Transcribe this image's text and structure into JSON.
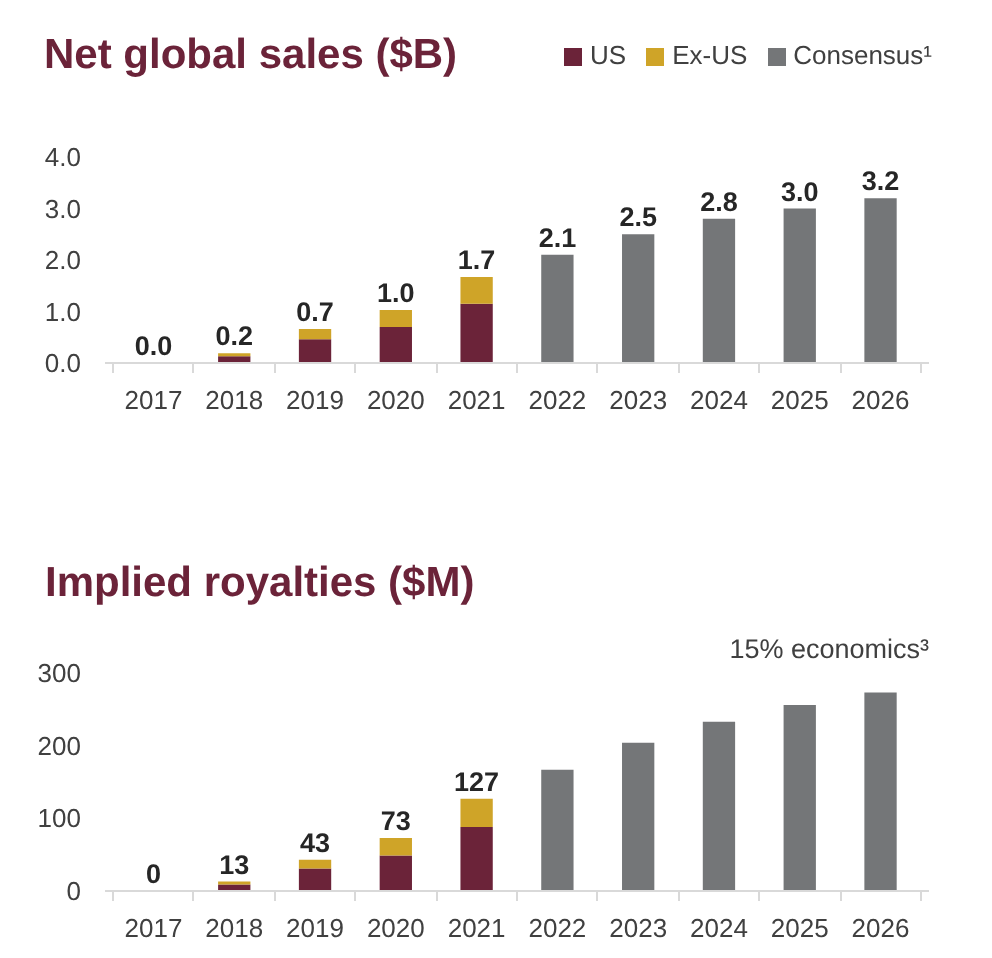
{
  "chart_data": [
    {
      "type": "bar",
      "title": "Net global sales ($B)",
      "categories": [
        "2017",
        "2018",
        "2019",
        "2020",
        "2021",
        "2022",
        "2023",
        "2024",
        "2025",
        "2026"
      ],
      "stacked": true,
      "series": [
        {
          "name": "US",
          "color": "#6b2339",
          "values": [
            0,
            0.13,
            0.46,
            0.7,
            1.15,
            null,
            null,
            null,
            null,
            null
          ]
        },
        {
          "name": "Ex-US",
          "color": "#cfa428",
          "values": [
            0,
            0.06,
            0.2,
            0.33,
            0.52,
            null,
            null,
            null,
            null,
            null
          ]
        },
        {
          "name": "Consensus¹",
          "color": "#747678",
          "values": [
            null,
            null,
            null,
            null,
            null,
            2.1,
            2.5,
            2.8,
            3.0,
            3.2
          ]
        }
      ],
      "totals": [
        "0.0",
        "0.2",
        "0.7",
        "1.0",
        "1.7",
        "2.1",
        "2.5",
        "2.8",
        "3.0",
        "3.2"
      ],
      "ylim": [
        0,
        4
      ],
      "yticks": [
        {
          "value": 0,
          "label": "0.0"
        },
        {
          "value": 1,
          "label": "1.0"
        },
        {
          "value": 2,
          "label": "2.0"
        },
        {
          "value": 3,
          "label": "3.0"
        },
        {
          "value": 4,
          "label": "4.0"
        }
      ],
      "legend": "top right"
    },
    {
      "type": "bar",
      "title": "Implied royalties ($M)",
      "annotations": [
        "15% economics³"
      ],
      "categories": [
        "2017",
        "2018",
        "2019",
        "2020",
        "2021",
        "2022",
        "2023",
        "2024",
        "2025",
        "2026"
      ],
      "stacked": true,
      "series": [
        {
          "color": "#6b2339",
          "values": [
            0,
            9,
            31,
            49,
            88,
            null,
            null,
            null,
            null,
            null
          ]
        },
        {
          "color": "#cfa428",
          "values": [
            0,
            4,
            12,
            24,
            39,
            null,
            null,
            null,
            null,
            null
          ]
        },
        {
          "color": "#747678",
          "values": [
            null,
            null,
            null,
            null,
            null,
            167,
            204,
            233,
            256,
            273
          ]
        }
      ],
      "totals": [
        "0",
        "13",
        "43",
        "73",
        "127",
        null,
        null,
        null,
        null,
        null
      ],
      "ylim": [
        0,
        300
      ],
      "yticks": [
        0,
        100,
        200,
        300
      ]
    }
  ]
}
